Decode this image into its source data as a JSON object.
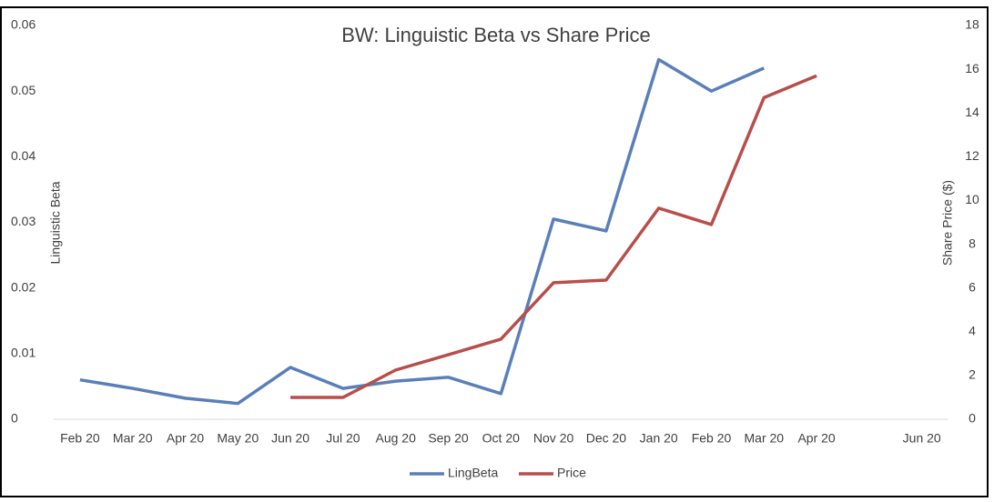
{
  "chart_data": {
    "type": "line",
    "title": "BW: Linguistic Beta vs Share Price",
    "categories": [
      "Feb 20",
      "Mar 20",
      "Apr 20",
      "May 20",
      "Jun 20",
      "Jul 20",
      "Aug 20",
      "Sep 20",
      "Oct 20",
      "Nov 20",
      "Dec 20",
      "Jan 20",
      "Feb 20",
      "Mar 20",
      "Apr 20",
      null,
      "Jun 20"
    ],
    "y_label": "Linguistic Beta",
    "y2_label": "Share Price ($)",
    "ylim": [
      0,
      0.06
    ],
    "yticks": [
      0,
      0.01,
      0.02,
      0.03,
      0.04,
      0.05,
      0.06
    ],
    "y2lim": [
      0,
      18
    ],
    "y2ticks": [
      0,
      2,
      4,
      6,
      8,
      10,
      12,
      14,
      16,
      18
    ],
    "legend": "bottom",
    "grid": false,
    "series": [
      {
        "name": "LingBeta",
        "color": "#5a7fb8",
        "values": [
          0.006,
          0.0047,
          0.0032,
          0.0024,
          0.0079,
          0.0047,
          0.0058,
          0.0064,
          0.0039,
          0.0305,
          0.0287,
          0.0548,
          0.05,
          0.0535,
          null,
          null,
          null
        ]
      },
      {
        "name": "Price",
        "color": "#b84e4a",
        "axis": "y2",
        "values": [
          null,
          null,
          null,
          null,
          1.0,
          1.0,
          2.25,
          2.95,
          3.66,
          6.24,
          6.36,
          9.65,
          8.9,
          14.7,
          15.7,
          null,
          null
        ]
      }
    ]
  }
}
